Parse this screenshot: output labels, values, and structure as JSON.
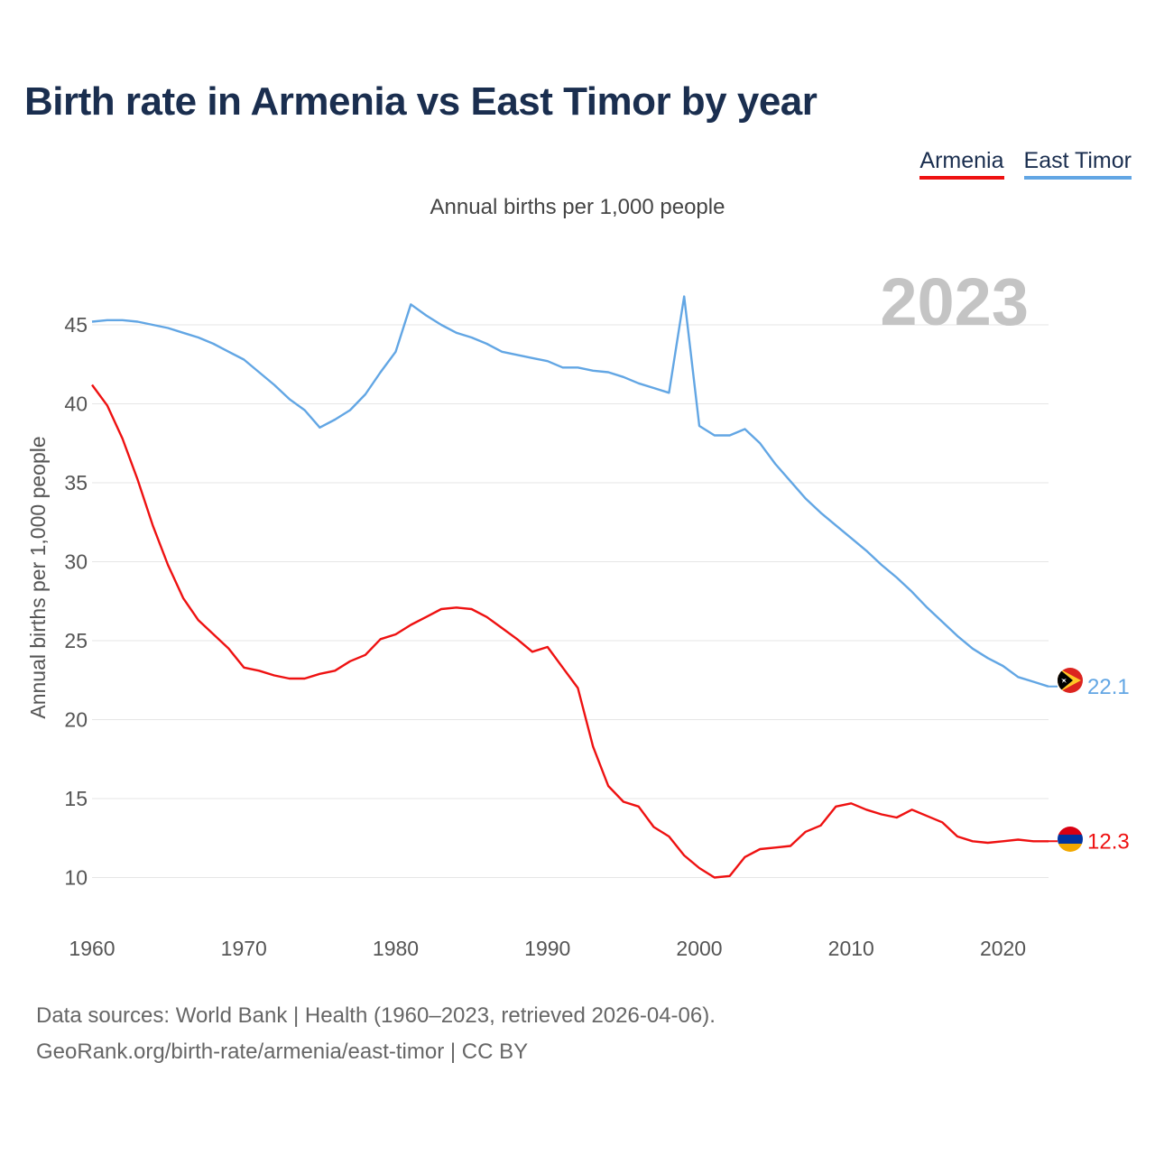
{
  "title": "Birth rate in Armenia vs East Timor by year",
  "legend": [
    {
      "label": "Armenia",
      "color": "#ee1111"
    },
    {
      "label": "East Timor",
      "color": "#62a6e4"
    }
  ],
  "subtitle": "Annual births per 1,000 people",
  "year_badge": "2023",
  "footer": {
    "line1": "Data sources: World Bank | Health (1960–2023, retrieved 2026-04-06).",
    "line2": "GeoRank.org/birth-rate/armenia/east-timor | CC BY"
  },
  "chart_data": {
    "type": "line",
    "title": "Birth rate in Armenia vs East Timor by year",
    "xlabel": "",
    "ylabel": "Annual births per 1,000 people",
    "xlim": [
      1960,
      2023
    ],
    "ylim": [
      7,
      49
    ],
    "xticks": [
      1960,
      1970,
      1980,
      1990,
      2000,
      2010,
      2020
    ],
    "yticks": [
      10,
      15,
      20,
      25,
      30,
      35,
      40,
      45
    ],
    "grid": true,
    "x": [
      1960,
      1961,
      1962,
      1963,
      1964,
      1965,
      1966,
      1967,
      1968,
      1969,
      1970,
      1971,
      1972,
      1973,
      1974,
      1975,
      1976,
      1977,
      1978,
      1979,
      1980,
      1981,
      1982,
      1983,
      1984,
      1985,
      1986,
      1987,
      1988,
      1989,
      1990,
      1991,
      1992,
      1993,
      1994,
      1995,
      1996,
      1997,
      1998,
      1999,
      2000,
      2001,
      2002,
      2003,
      2004,
      2005,
      2006,
      2007,
      2008,
      2009,
      2010,
      2011,
      2012,
      2013,
      2014,
      2015,
      2016,
      2017,
      2018,
      2019,
      2020,
      2021,
      2022,
      2023
    ],
    "series": [
      {
        "name": "Armenia",
        "color": "#ee1111",
        "end_label": "12.3",
        "values": [
          41.2,
          39.9,
          37.8,
          35.2,
          32.3,
          29.8,
          27.7,
          26.3,
          25.4,
          24.5,
          23.3,
          23.1,
          22.8,
          22.6,
          22.6,
          22.9,
          23.1,
          23.7,
          24.1,
          25.1,
          25.4,
          26.0,
          26.5,
          27.0,
          27.1,
          27.0,
          26.5,
          25.8,
          25.1,
          24.3,
          24.6,
          23.3,
          22.0,
          18.3,
          15.8,
          14.8,
          14.5,
          13.2,
          12.6,
          11.4,
          10.6,
          10.0,
          10.1,
          11.3,
          11.8,
          11.9,
          12.0,
          12.9,
          13.3,
          14.5,
          14.7,
          14.3,
          14.0,
          13.8,
          14.3,
          13.9,
          13.5,
          12.6,
          12.3,
          12.2,
          12.3,
          12.4,
          12.3,
          12.3
        ]
      },
      {
        "name": "East Timor",
        "color": "#62a6e4",
        "end_label": "22.1",
        "values": [
          45.2,
          45.3,
          45.3,
          45.2,
          45.0,
          44.8,
          44.5,
          44.2,
          43.8,
          43.3,
          42.8,
          42.0,
          41.2,
          40.3,
          39.6,
          38.5,
          39.0,
          39.6,
          40.6,
          42.0,
          43.3,
          46.3,
          45.6,
          45.0,
          44.5,
          44.2,
          43.8,
          43.3,
          43.1,
          42.9,
          42.7,
          42.3,
          42.3,
          42.1,
          42.0,
          41.7,
          41.3,
          41.0,
          40.7,
          46.8,
          38.6,
          38.0,
          38.0,
          38.4,
          37.5,
          36.2,
          35.1,
          34.0,
          33.1,
          32.3,
          31.5,
          30.7,
          29.8,
          29.0,
          28.1,
          27.1,
          26.2,
          25.3,
          24.5,
          23.9,
          23.4,
          22.7,
          22.4,
          22.1
        ]
      }
    ]
  }
}
